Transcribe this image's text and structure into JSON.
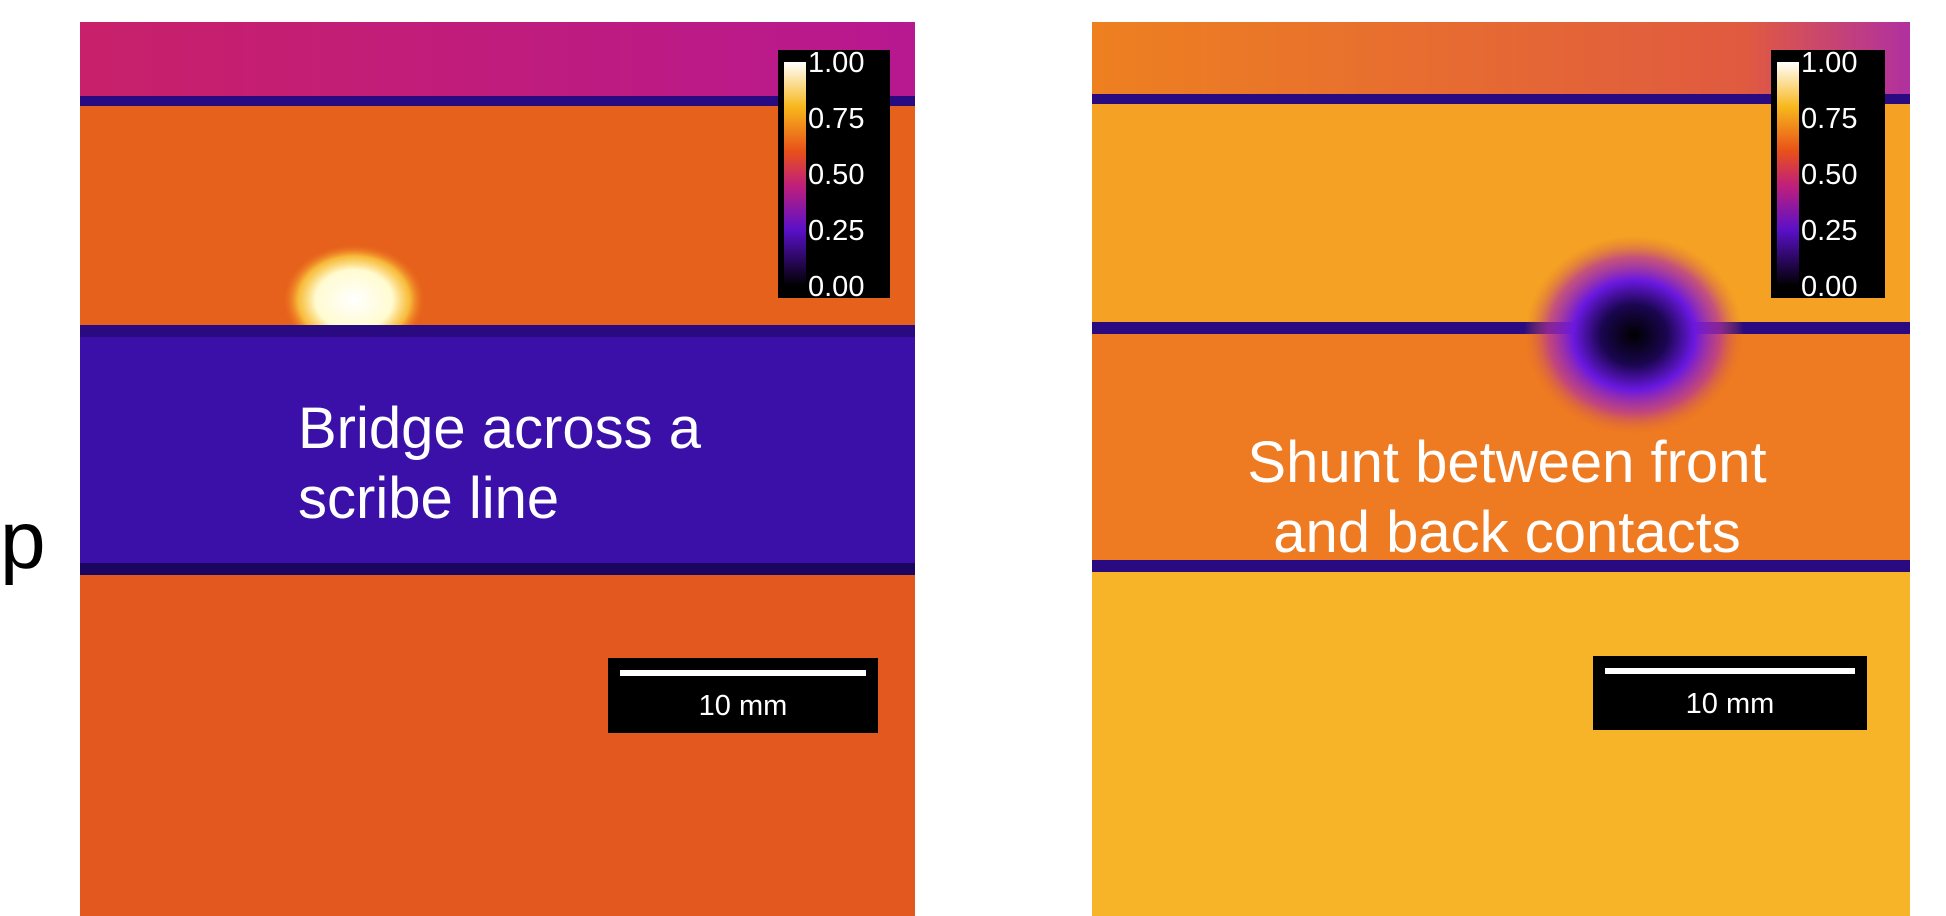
{
  "edge_text": "p",
  "panels": [
    {
      "colorbar_ticks": [
        "1.00",
        "0.75",
        "0.50",
        "0.25",
        "0.00"
      ],
      "scale_bar": "10 mm",
      "caption": [
        "Bridge across a",
        "scribe line"
      ]
    },
    {
      "colorbar_ticks": [
        "1.00",
        "0.75",
        "0.50",
        "0.25",
        "0.00"
      ],
      "scale_bar": "10 mm",
      "caption": [
        "Shunt between front",
        "and back contacts"
      ]
    }
  ]
}
